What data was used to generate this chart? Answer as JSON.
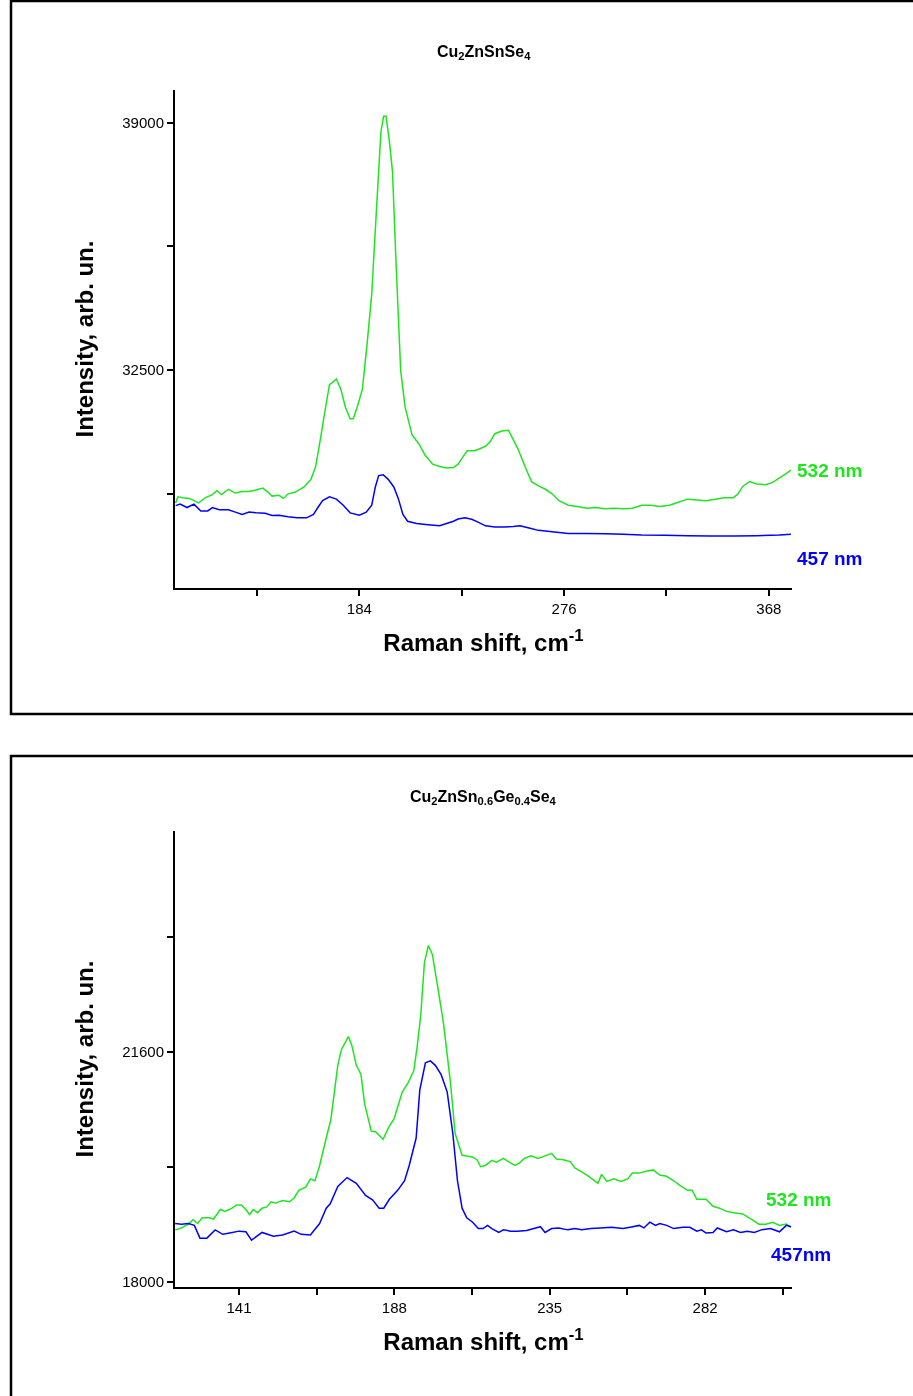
{
  "chart_data": [
    {
      "type": "line",
      "title": "Cu$_{2}$ZnSnSe$_{4}$",
      "xlabel": "Raman shift, cm$^{-1}$",
      "ylabel": "Intensity, arb. un.",
      "xlim": [
        101.2,
        378.4
      ],
      "ylim": [
        26776,
        39860
      ],
      "xticks": [
        {
          "value": 138,
          "label": null
        },
        184,
        {
          "value": 230,
          "label": null
        },
        276,
        {
          "value": 322,
          "label": null
        },
        368
      ],
      "yticks": [
        {
          "value": 29250,
          "label": null
        },
        32500,
        {
          "value": 35750,
          "label": null
        },
        39000
      ],
      "series": [
        {
          "name": "532 nm",
          "color": "#1ee61e",
          "x": [
            101.5,
            102.5,
            104.6,
            107.7,
            111.8,
            114.9,
            118.0,
            120.0,
            122.1,
            125.2,
            128.3,
            131.4,
            134.5,
            137.6,
            140.7,
            142.7,
            144.8,
            147.9,
            150.0,
            152.0,
            155.1,
            159.2,
            162.3,
            164.4,
            166.5,
            168.5,
            170.6,
            172.0,
            173.7,
            175.7,
            177.8,
            179.9,
            181.3,
            183.0,
            185.4,
            187.5,
            189.6,
            191.2,
            192.7,
            193.7,
            194.9,
            196.0,
            197.4,
            198.9,
            200.5,
            202.6,
            204.6,
            207.7,
            210.8,
            213.5,
            217.0,
            220.1,
            223.2,
            226.3,
            228.4,
            230.4,
            232.5,
            235.6,
            237.6,
            240.7,
            242.8,
            244.9,
            248.0,
            251.0,
            253.1,
            255.2,
            257.2,
            259.3,
            261.4,
            264.5,
            267.6,
            270.6,
            273.7,
            277.9,
            282.0,
            286.1,
            290.2,
            294.4,
            298.5,
            302.6,
            306.7,
            310.9,
            315.0,
            319.1,
            323.3,
            327.4,
            331.5,
            335.6,
            339.8,
            343.9,
            348.0,
            352.1,
            354.2,
            356.3,
            359.4,
            362.5,
            366.6,
            369.7,
            372.8,
            375.9,
            377.9
          ],
          "values": [
            29010,
            29170,
            29150,
            29130,
            29010,
            29150,
            29230,
            29330,
            29230,
            29370,
            29270,
            29310,
            29310,
            29350,
            29400,
            29310,
            29190,
            29210,
            29130,
            29250,
            29290,
            29430,
            29630,
            29970,
            30680,
            31400,
            32120,
            32180,
            32270,
            32000,
            31520,
            31220,
            31220,
            31520,
            32000,
            33190,
            34510,
            36180,
            37730,
            38750,
            39170,
            39170,
            38570,
            37730,
            35340,
            32480,
            31520,
            30800,
            30560,
            30270,
            30030,
            29970,
            29930,
            29940,
            30030,
            30210,
            30380,
            30380,
            30420,
            30500,
            30620,
            30830,
            30900,
            30920,
            30680,
            30440,
            30150,
            29850,
            29570,
            29460,
            29370,
            29250,
            29070,
            28950,
            28920,
            28870,
            28890,
            28860,
            28870,
            28860,
            28870,
            28950,
            28950,
            28920,
            28950,
            29030,
            29110,
            29090,
            29070,
            29110,
            29150,
            29150,
            29250,
            29450,
            29570,
            29510,
            29490,
            29550,
            29670,
            29790,
            29870
          ]
        },
        {
          "name": "457 nm",
          "color": "#0000ff",
          "x": [
            101.5,
            103.5,
            106.6,
            109.7,
            112.8,
            115.9,
            118.0,
            121.1,
            125.2,
            128.3,
            131.4,
            134.5,
            137.6,
            141.7,
            144.8,
            147.9,
            152.0,
            156.1,
            160.3,
            163.4,
            165.4,
            167.5,
            170.6,
            173.7,
            176.8,
            179.9,
            184.0,
            187.1,
            189.6,
            191.2,
            192.7,
            194.7,
            197.0,
            199.5,
            201.5,
            203.6,
            205.7,
            209.8,
            214.9,
            220.1,
            223.2,
            226.3,
            228.4,
            231.4,
            234.5,
            237.6,
            240.7,
            244.9,
            249.0,
            253.1,
            256.2,
            260.3,
            264.5,
            269.6,
            277.9,
            286.1,
            294.4,
            302.6,
            310.9,
            321.2,
            331.5,
            341.8,
            352.1,
            362.5,
            372.8,
            377.9
          ],
          "values": [
            28940,
            28980,
            28890,
            28980,
            28800,
            28800,
            28890,
            28830,
            28830,
            28770,
            28710,
            28770,
            28750,
            28740,
            28680,
            28690,
            28650,
            28620,
            28620,
            28710,
            28890,
            29070,
            29170,
            29110,
            28950,
            28750,
            28690,
            28770,
            28950,
            29430,
            29730,
            29750,
            29630,
            29430,
            29130,
            28710,
            28530,
            28470,
            28440,
            28410,
            28470,
            28530,
            28590,
            28620,
            28580,
            28500,
            28410,
            28380,
            28380,
            28390,
            28410,
            28350,
            28290,
            28260,
            28210,
            28210,
            28200,
            28190,
            28170,
            28160,
            28150,
            28140,
            28140,
            28150,
            28170,
            28190
          ]
        }
      ]
    },
    {
      "type": "line",
      "title": "Cu$_{2}$ZnSn$_{0.6}$Ge$_{0.4}$Se$_{4}$",
      "xlabel": "Raman shift, cm$^{-1}$",
      "ylabel": "Intensity, arb. un.",
      "xlim": [
        121.65,
        308.3
      ],
      "ylim": [
        17914,
        25065
      ],
      "xticks": [
        141,
        {
          "value": 164.5,
          "label": null
        },
        188,
        {
          "value": 211.5,
          "label": null
        },
        235,
        {
          "value": 258.5,
          "label": null
        },
        282,
        {
          "value": 305.5,
          "label": null
        }
      ],
      "yticks": [
        18000,
        {
          "value": 19800,
          "label": null
        },
        21600,
        {
          "value": 23400,
          "label": null
        }
      ],
      "series": [
        {
          "name": "532 nm",
          "color": "#1ee61e",
          "x": [
            121.7,
            123.6,
            125.7,
            127.1,
            128.5,
            129.9,
            132.0,
            133.3,
            135.4,
            136.8,
            138.9,
            140.3,
            141.7,
            143.1,
            144.2,
            145.3,
            146.6,
            148.0,
            149.4,
            150.7,
            152.1,
            154.2,
            156.3,
            157.7,
            159.1,
            161.2,
            162.6,
            164.0,
            165.4,
            167.4,
            168.8,
            170.9,
            172.0,
            174.1,
            175.1,
            176.5,
            177.9,
            179.0,
            181.0,
            182.3,
            184.6,
            186.2,
            187.9,
            190.4,
            192.1,
            193.9,
            194.9,
            196.0,
            197.1,
            198.3,
            199.5,
            201.5,
            202.9,
            205.0,
            206.4,
            208.5,
            209.9,
            211.7,
            213.0,
            214.1,
            215.5,
            217.5,
            218.9,
            221.0,
            223.1,
            224.5,
            225.9,
            227.3,
            229.4,
            231.5,
            233.6,
            235.6,
            237.0,
            239.1,
            241.2,
            242.6,
            244.7,
            246.8,
            249.6,
            250.7,
            252.3,
            254.4,
            256.5,
            258.6,
            260.0,
            262.1,
            264.2,
            266.3,
            268.3,
            270.4,
            272.5,
            274.6,
            276.7,
            278.1,
            279.5,
            282.3,
            284.4,
            286.4,
            288.5,
            290.6,
            293.4,
            296.2,
            298.3,
            300.4,
            302.5,
            304.5,
            306.6,
            308.0
          ],
          "values": [
            18810,
            18840,
            18900,
            18970,
            18910,
            19000,
            19000,
            18980,
            19130,
            19100,
            19150,
            19200,
            19200,
            19130,
            19050,
            19130,
            19080,
            19150,
            19170,
            19250,
            19230,
            19270,
            19250,
            19310,
            19430,
            19480,
            19610,
            19580,
            19820,
            20250,
            20540,
            21390,
            21640,
            21840,
            21710,
            21390,
            21250,
            20790,
            20360,
            20350,
            20230,
            20410,
            20550,
            20970,
            21110,
            21310,
            21680,
            22180,
            23000,
            23270,
            23130,
            22500,
            22040,
            21110,
            20320,
            19980,
            19970,
            19950,
            19910,
            19800,
            19820,
            19900,
            19870,
            19930,
            19860,
            19820,
            19860,
            19930,
            19970,
            19930,
            19970,
            20010,
            19920,
            19910,
            19880,
            19780,
            19720,
            19650,
            19540,
            19680,
            19570,
            19610,
            19570,
            19610,
            19700,
            19700,
            19730,
            19750,
            19670,
            19650,
            19580,
            19500,
            19430,
            19430,
            19290,
            19290,
            19180,
            19150,
            19100,
            19080,
            19060,
            18970,
            18900,
            18900,
            18930,
            18880,
            18900,
            18850
          ]
        },
        {
          "name": "457nm",
          "color": "#0000ff",
          "x": [
            121.7,
            123.6,
            125.7,
            127.5,
            129.2,
            131.3,
            133.8,
            136.1,
            138.2,
            141.0,
            143.1,
            144.8,
            148.0,
            151.4,
            154.2,
            157.7,
            159.8,
            162.6,
            165.4,
            167.4,
            168.6,
            170.9,
            173.7,
            176.5,
            179.3,
            181.4,
            183.4,
            184.8,
            186.5,
            189.0,
            191.1,
            192.5,
            194.6,
            195.7,
            197.4,
            198.9,
            200.4,
            202.2,
            204.0,
            205.7,
            207.1,
            208.5,
            209.9,
            211.7,
            213.4,
            214.8,
            216.2,
            217.5,
            219.6,
            221.0,
            223.1,
            225.2,
            228.0,
            230.8,
            232.2,
            233.6,
            235.6,
            237.7,
            240.5,
            242.6,
            244.7,
            247.5,
            250.3,
            253.7,
            257.2,
            259.3,
            262.1,
            263.5,
            265.3,
            267.0,
            268.3,
            270.4,
            272.5,
            275.3,
            277.4,
            279.5,
            280.9,
            282.3,
            284.4,
            285.7,
            288.5,
            290.6,
            292.7,
            294.8,
            296.9,
            299.0,
            301.8,
            304.5,
            306.6,
            308.0
          ],
          "values": [
            18910,
            18900,
            18910,
            18880,
            18680,
            18680,
            18810,
            18740,
            18760,
            18790,
            18780,
            18650,
            18770,
            18710,
            18730,
            18790,
            18740,
            18730,
            18910,
            19150,
            19220,
            19490,
            19630,
            19540,
            19350,
            19280,
            19150,
            19150,
            19290,
            19430,
            19580,
            19820,
            20250,
            21000,
            21430,
            21460,
            21390,
            21240,
            20970,
            20320,
            19580,
            19150,
            19000,
            18930,
            18830,
            18830,
            18880,
            18830,
            18770,
            18810,
            18790,
            18790,
            18800,
            18840,
            18860,
            18770,
            18830,
            18840,
            18810,
            18830,
            18810,
            18830,
            18840,
            18850,
            18830,
            18850,
            18880,
            18840,
            18930,
            18880,
            18910,
            18880,
            18830,
            18850,
            18850,
            18790,
            18810,
            18760,
            18770,
            18840,
            18780,
            18810,
            18770,
            18790,
            18770,
            18810,
            18830,
            18780,
            18880,
            18860
          ]
        }
      ]
    }
  ]
}
